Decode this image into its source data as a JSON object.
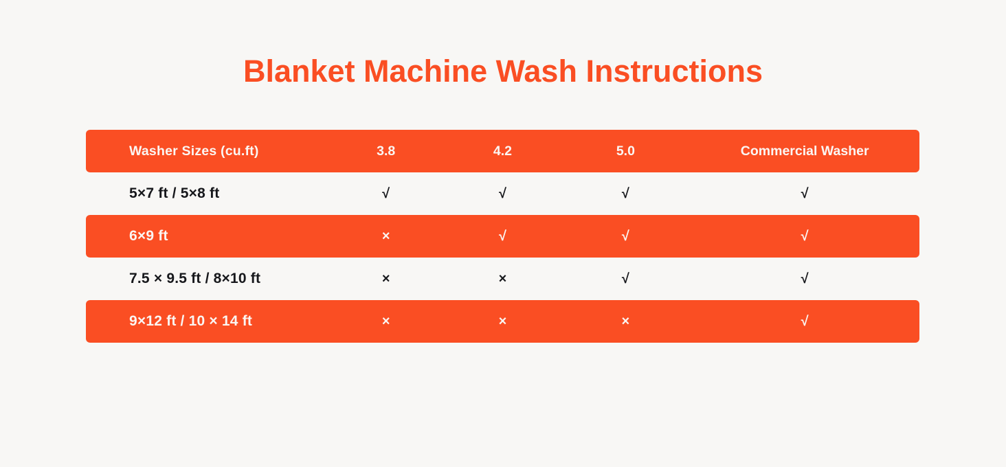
{
  "title": "Blanket Machine Wash Instructions",
  "colors": {
    "accent": "#FA4E23",
    "background": "#F8F7F5",
    "text_dark": "#17181C",
    "text_light": "#FBF6F3"
  },
  "chart_data": {
    "type": "table",
    "title": "Blanket Machine Wash Instructions",
    "columns": [
      "Washer Sizes (cu.ft)",
      "3.8",
      "4.2",
      "5.0",
      "Commercial Washer"
    ],
    "rows": [
      {
        "label": "5×7 ft / 5×8 ft",
        "values": [
          "√",
          "√",
          "√",
          "√"
        ],
        "highlight": false
      },
      {
        "label": "6×9 ft",
        "values": [
          "×",
          "√",
          "√",
          "√"
        ],
        "highlight": true
      },
      {
        "label": "7.5 × 9.5 ft / 8×10 ft",
        "values": [
          "×",
          "×",
          "√",
          "√"
        ],
        "highlight": false
      },
      {
        "label": "9×12 ft / 10 × 14 ft",
        "values": [
          "×",
          "×",
          "×",
          "√"
        ],
        "highlight": true
      }
    ],
    "legend": {
      "check_glyph": "√",
      "cross_glyph": "×"
    },
    "layout": "header band + alternating highlighted rows"
  }
}
